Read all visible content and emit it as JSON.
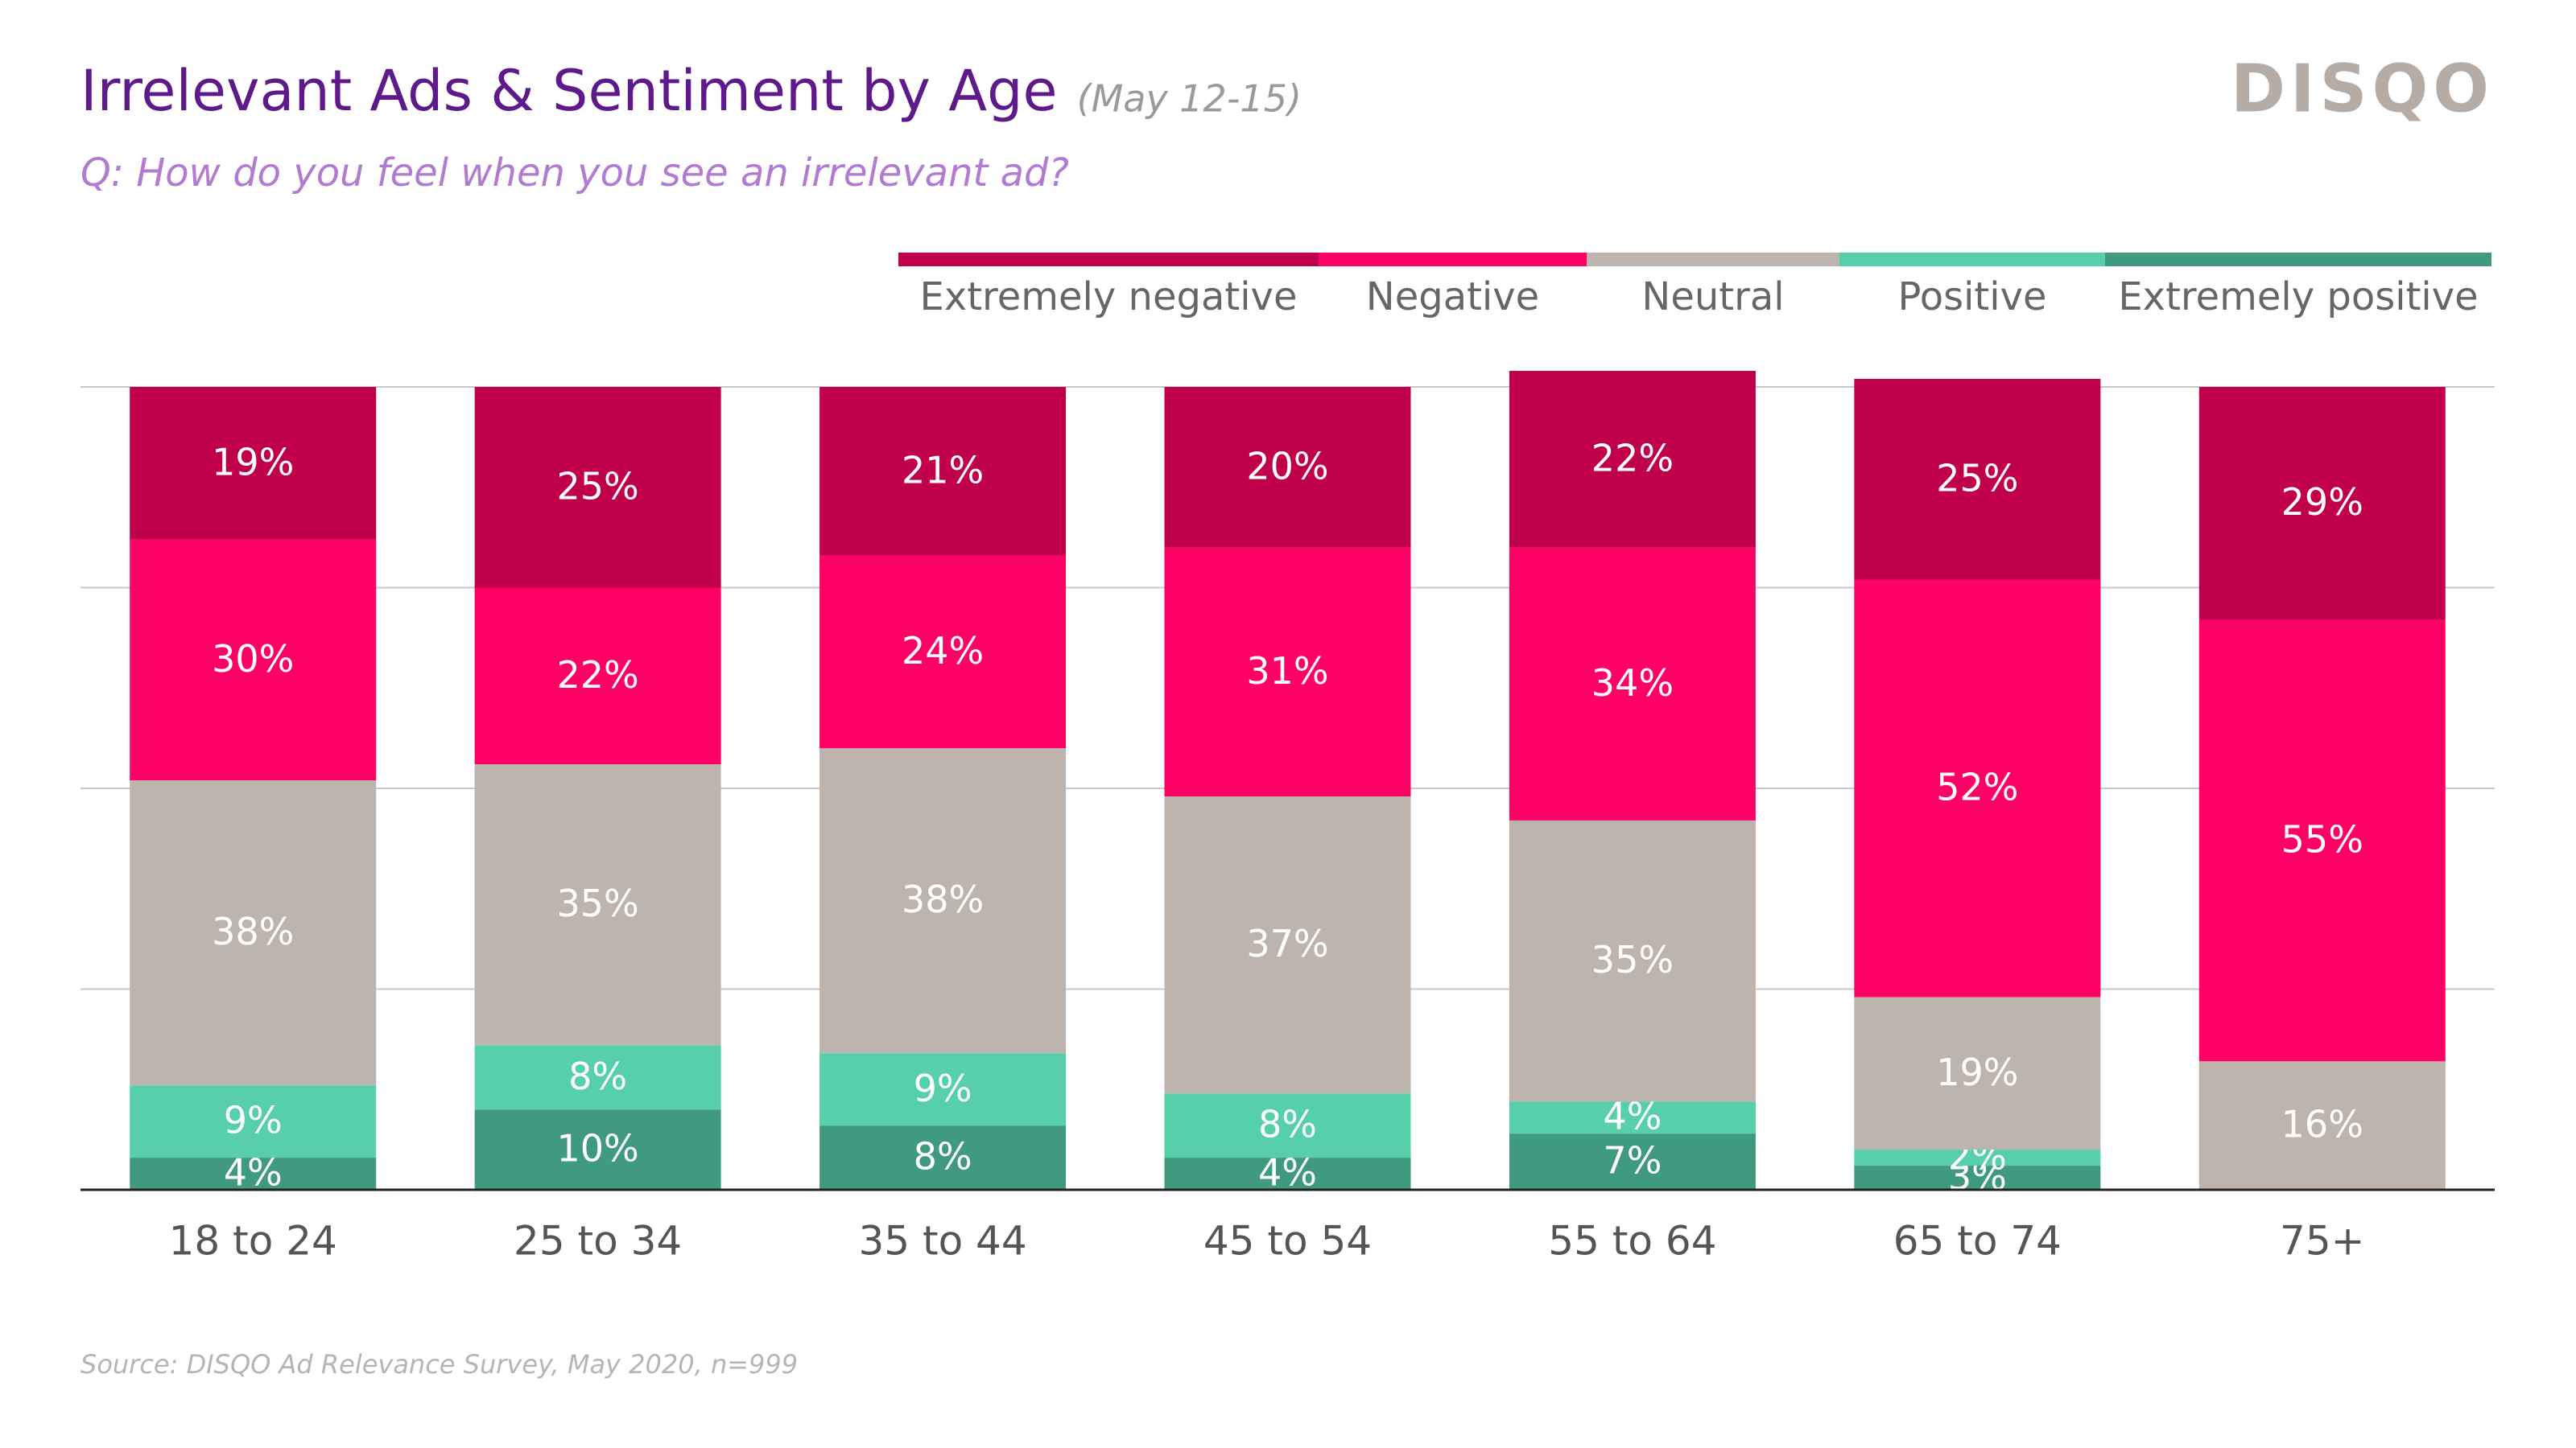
{
  "chart_data": {
    "type": "stacked_bar",
    "title": "Irrelevant Ads & Sentiment by Age",
    "title_note": "(May 12-15)",
    "subtitle": "Q: How do you feel when you see an irrelevant ad?",
    "brand": "DISQO",
    "source": "Source: DISQO Ad Relevance Survey, May 2020, n=999",
    "categories": [
      "18 to 24",
      "25 to 34",
      "35 to 44",
      "45 to 54",
      "55 to 64",
      "65 to 74",
      "75+"
    ],
    "ylim": [
      0,
      100
    ],
    "yticks": [
      0,
      25,
      50,
      75,
      100
    ],
    "grid": true,
    "legend": "top",
    "series": [
      {
        "name": "Extremely negative",
        "color": "#c0004a",
        "values": [
          19,
          25,
          21,
          20,
          22,
          25,
          29
        ],
        "value_labels": [
          "19%",
          "25%",
          "21%",
          "20%",
          "22%",
          "25%",
          "29%"
        ]
      },
      {
        "name": "Negative",
        "color": "#ff0066",
        "values": [
          30,
          22,
          24,
          31,
          34,
          52,
          55
        ],
        "value_labels": [
          "30%",
          "22%",
          "24%",
          "31%",
          "34%",
          "52%",
          "55%"
        ]
      },
      {
        "name": "Neutral",
        "color": "#bdb5ad",
        "values": [
          38,
          35,
          38,
          37,
          35,
          19,
          16
        ],
        "value_labels": [
          "38%",
          "35%",
          "38%",
          "37%",
          "35%",
          "19%",
          "16%"
        ]
      },
      {
        "name": "Positive",
        "color": "#57cfab",
        "values": [
          9,
          8,
          9,
          8,
          4,
          2,
          null
        ],
        "value_labels": [
          "9%",
          "8%",
          "9%",
          "8%",
          "4%",
          "2%",
          null
        ]
      },
      {
        "name": "Extremely positive",
        "color": "#3f9a80",
        "values": [
          4,
          10,
          8,
          4,
          7,
          3,
          null
        ],
        "value_labels": [
          "4%",
          "10%",
          "8%",
          "4%",
          "7%",
          "3%",
          null
        ]
      }
    ]
  }
}
